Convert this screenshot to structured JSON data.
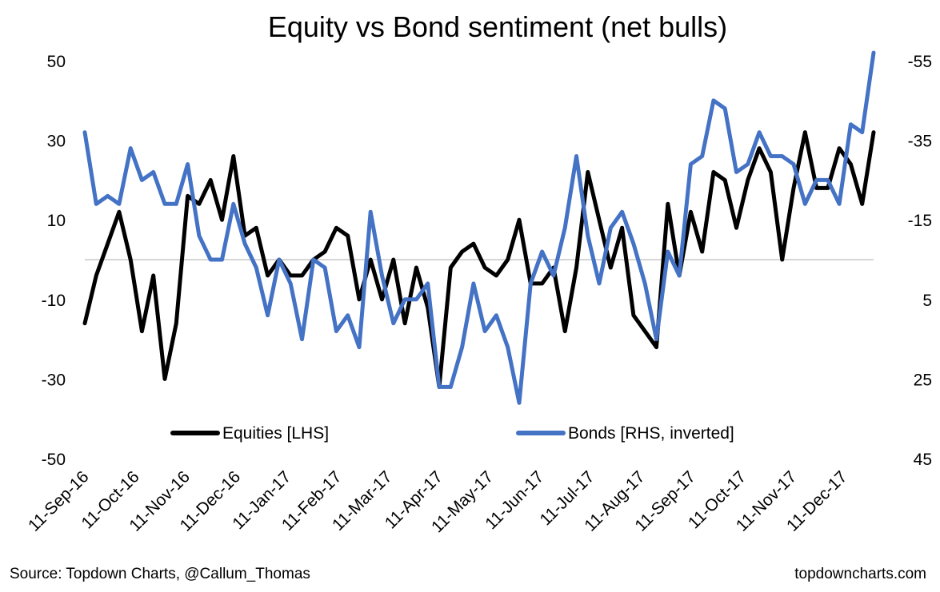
{
  "chart_data": {
    "type": "line",
    "title": "Equity vs Bond sentiment (net bulls)",
    "x_tick_labels": [
      "11-Sep-16",
      "11-Oct-16",
      "11-Nov-16",
      "11-Dec-16",
      "11-Jan-17",
      "11-Feb-17",
      "11-Mar-17",
      "11-Apr-17",
      "11-May-17",
      "11-Jun-17",
      "11-Jul-17",
      "11-Aug-17",
      "11-Sep-17",
      "11-Oct-17",
      "11-Nov-17",
      "11-Dec-17"
    ],
    "left_axis": {
      "ylim": [
        -50,
        50
      ],
      "ticks": [
        50,
        30,
        10,
        -10,
        -30,
        -50
      ]
    },
    "right_axis": {
      "ylim": [
        45,
        -55
      ],
      "inverted": true,
      "ticks": [
        -55,
        -35,
        -15,
        5,
        25,
        45
      ]
    },
    "zero_line": 0,
    "series": [
      {
        "name": "Equities [LHS]",
        "axis": "left",
        "color": "#000000",
        "values": [
          -16,
          -4,
          4,
          12,
          0,
          -18,
          -4,
          -30,
          -16,
          16,
          14,
          20,
          10,
          26,
          6,
          8,
          -4,
          0,
          -4,
          -4,
          0,
          2,
          8,
          6,
          -10,
          0,
          -10,
          0,
          -16,
          -2,
          -12,
          -32,
          -2,
          2,
          4,
          -2,
          -4,
          0,
          10,
          -6,
          -6,
          -2,
          -18,
          -2,
          22,
          10,
          -2,
          8,
          -14,
          -18,
          -22,
          14,
          -4,
          12,
          2,
          22,
          20,
          8,
          20,
          28,
          22,
          0,
          18,
          32,
          18,
          18,
          28,
          24,
          14,
          32
        ]
      },
      {
        "name": "Bonds [RHS, inverted]",
        "axis": "right",
        "color": "#4472C4",
        "values": [
          -37,
          -19,
          -21,
          -19,
          -33,
          -25,
          -27,
          -19,
          -19,
          -29,
          -11,
          -5,
          -5,
          -19,
          -9,
          -3,
          9,
          -5,
          1,
          15,
          -5,
          -3,
          13,
          9,
          17,
          -17,
          -1,
          11,
          5,
          5,
          1,
          27,
          27,
          17,
          1,
          13,
          9,
          17,
          31,
          1,
          -7,
          -1,
          -13,
          -31,
          -11,
          1,
          -13,
          -17,
          -9,
          1,
          15,
          -7,
          -1,
          -29,
          -31,
          -45,
          -43,
          -27,
          -29,
          -37,
          -31,
          -31,
          -29,
          -19,
          -25,
          -25,
          -19,
          -39,
          -37,
          -57
        ]
      }
    ],
    "legend": {
      "placement": "bottom-center",
      "entries": [
        "Equities [LHS]",
        "Bonds [RHS, inverted]"
      ]
    },
    "grid": false
  },
  "footer": {
    "source": "Source: Topdown Charts, @Callum_Thomas",
    "site": "topdowncharts.com"
  }
}
